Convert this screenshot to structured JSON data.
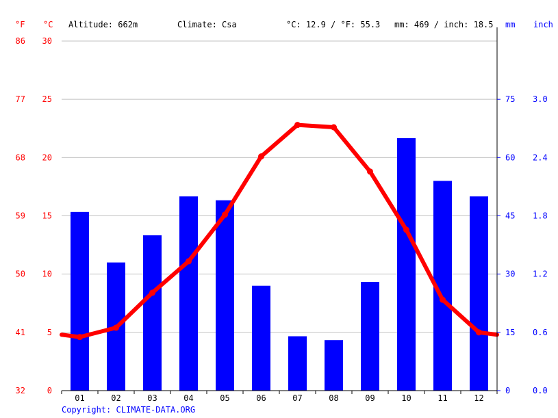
{
  "header": {
    "unit_f": "°F",
    "unit_c": "°C",
    "altitude": "Altitude: 662m",
    "climate": "Climate: Csa",
    "temperature_avg": "°C: 12.9 / °F: 55.3",
    "precipitation_total": "mm: 469 / inch: 18.5",
    "unit_mm": "mm",
    "unit_inch": "inch"
  },
  "copyright": "Copyright: CLIMATE-DATA.ORG",
  "colors": {
    "temperature": "#ff0000",
    "precipitation": "#0000ff",
    "grid": "#c0c0c0"
  },
  "chart_data": {
    "type": "bar",
    "categories": [
      "01",
      "02",
      "03",
      "04",
      "05",
      "06",
      "07",
      "08",
      "09",
      "10",
      "11",
      "12"
    ],
    "series": [
      {
        "kind": "bar",
        "axis": "mm",
        "values": [
          46,
          33,
          40,
          50,
          49,
          27,
          14,
          13,
          28,
          65,
          54,
          50
        ]
      },
      {
        "kind": "line",
        "axis": "celsius",
        "values": [
          4.6,
          5.4,
          8.4,
          11.1,
          15.1,
          20.1,
          22.8,
          22.6,
          18.8,
          13.8,
          7.8,
          5.0
        ]
      }
    ],
    "celsius_ticks": [
      "0",
      "5",
      "10",
      "15",
      "20",
      "25",
      "30"
    ],
    "fahrenheit_ticks": [
      "32",
      "41",
      "50",
      "59",
      "68",
      "77",
      "86"
    ],
    "mm_ticks": [
      "0",
      "15",
      "30",
      "45",
      "60",
      "75"
    ],
    "inch_ticks": [
      "0.0",
      "0.6",
      "1.2",
      "1.8",
      "2.4",
      "3.0"
    ],
    "ylim_celsius": [
      0,
      30
    ],
    "ylim_mm": [
      0,
      90
    ],
    "grid": true
  }
}
